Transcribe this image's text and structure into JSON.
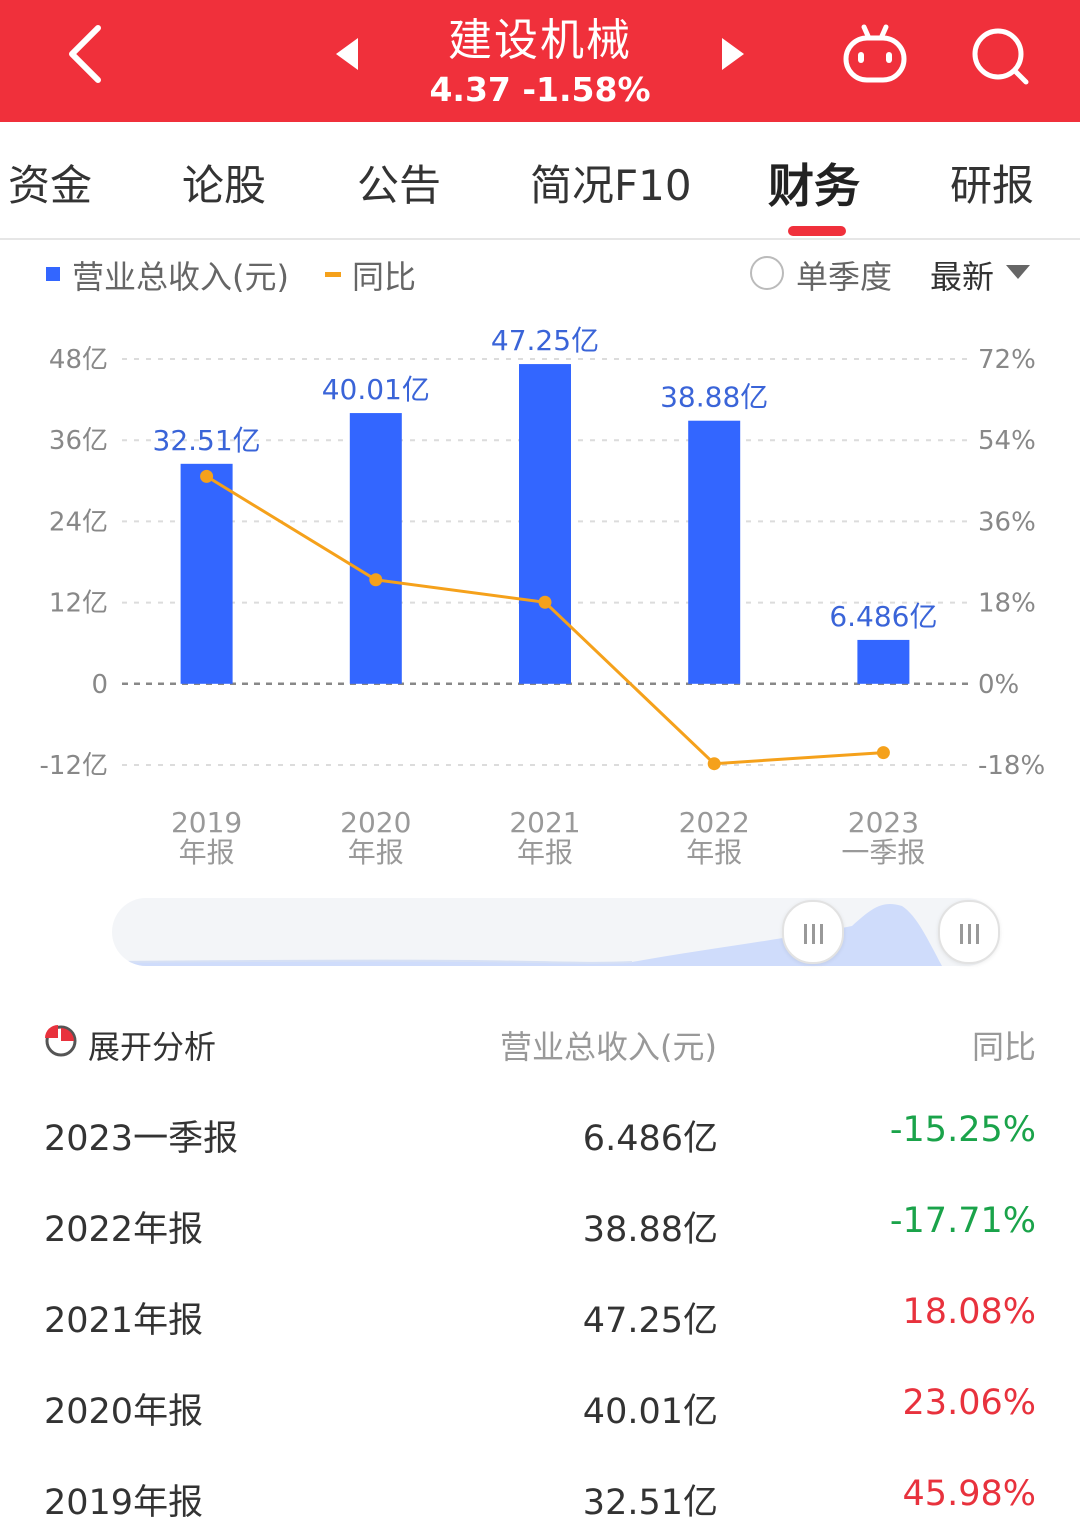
{
  "header": {
    "title": "建设机械",
    "quote": "4.37  -1.58%",
    "back_icon": "chevron-left-icon",
    "prev_icon": "triangle-left-icon",
    "next_icon": "triangle-right-icon",
    "robot_icon": "robot-icon",
    "search_icon": "search-icon"
  },
  "tabs": [
    {
      "label": "资金"
    },
    {
      "label": "论股"
    },
    {
      "label": "公告"
    },
    {
      "label": "简况F10"
    },
    {
      "label": "财务"
    },
    {
      "label": "研报"
    }
  ],
  "active_tab": "财务",
  "legend": {
    "revenue": "营业总收入(元)",
    "yoy": "同比",
    "single_quarter": "单季度",
    "period_select": "最新"
  },
  "colors": {
    "header": "#f0303b",
    "bar": "#3366ff",
    "line": "#f5a11b",
    "positive": "#e8323d",
    "negative": "#1aa34a"
  },
  "chart_data": {
    "type": "bar",
    "categories": [
      [
        "2019",
        "年报"
      ],
      [
        "2020",
        "年报"
      ],
      [
        "2021",
        "年报"
      ],
      [
        "2022",
        "年报"
      ],
      [
        "2023",
        "一季报"
      ]
    ],
    "series": [
      {
        "name": "营业总收入(元)",
        "type": "bar",
        "axis": "left",
        "values": [
          32.51,
          40.01,
          47.25,
          38.88,
          6.486
        ],
        "labels": [
          "32.51亿",
          "40.01亿",
          "47.25亿",
          "38.88亿",
          "6.486亿"
        ]
      },
      {
        "name": "同比",
        "type": "line",
        "axis": "right",
        "values": [
          45.98,
          23.06,
          18.08,
          -17.71,
          -15.25
        ]
      }
    ],
    "y_left": {
      "ticks": [
        "48亿",
        "36亿",
        "24亿",
        "12亿",
        "0",
        "-12亿"
      ],
      "tick_values": [
        48,
        36,
        24,
        12,
        0,
        -12
      ],
      "range": [
        -12,
        48
      ]
    },
    "y_right": {
      "ticks": [
        "72%",
        "54%",
        "36%",
        "18%",
        "0%",
        "-18%"
      ],
      "tick_values": [
        72,
        54,
        36,
        18,
        0,
        -18
      ],
      "range": [
        -18,
        72
      ]
    },
    "grid": true
  },
  "table": {
    "expand_label": "展开分析",
    "col_revenue": "营业总收入(元)",
    "col_yoy": "同比",
    "rows": [
      {
        "period": "2023一季报",
        "value": "6.486亿",
        "yoy": "-15.25%",
        "sign": "neg"
      },
      {
        "period": "2022年报",
        "value": "38.88亿",
        "yoy": "-17.71%",
        "sign": "neg"
      },
      {
        "period": "2021年报",
        "value": "47.25亿",
        "yoy": "18.08%",
        "sign": "pos"
      },
      {
        "period": "2020年报",
        "value": "40.01亿",
        "yoy": "23.06%",
        "sign": "pos"
      },
      {
        "period": "2019年报",
        "value": "32.51亿",
        "yoy": "45.98%",
        "sign": "pos"
      }
    ]
  }
}
